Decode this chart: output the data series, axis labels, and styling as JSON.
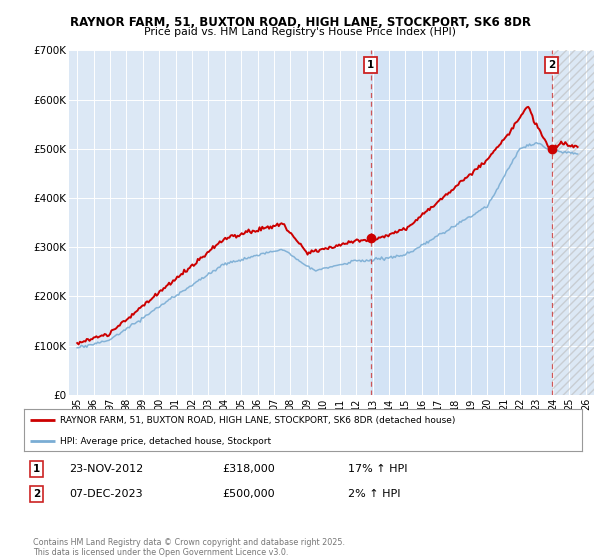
{
  "title1": "RAYNOR FARM, 51, BUXTON ROAD, HIGH LANE, STOCKPORT, SK6 8DR",
  "title2": "Price paid vs. HM Land Registry's House Price Index (HPI)",
  "plot_bg": "#dce8f5",
  "ylim": [
    0,
    700000
  ],
  "yticks": [
    0,
    100000,
    200000,
    300000,
    400000,
    500000,
    600000,
    700000
  ],
  "ytick_labels": [
    "£0",
    "£100K",
    "£200K",
    "£300K",
    "£400K",
    "£500K",
    "£600K",
    "£700K"
  ],
  "xlim_start": 1994.5,
  "xlim_end": 2026.5,
  "transaction1_date": "23-NOV-2012",
  "transaction1_price": 318000,
  "transaction1_hpi": "17% ↑ HPI",
  "transaction1_x": 2012.9,
  "transaction1_y": 318000,
  "transaction2_date": "07-DEC-2023",
  "transaction2_price": 500000,
  "transaction2_hpi": "2% ↑ HPI",
  "transaction2_x": 2023.93,
  "transaction2_y": 500000,
  "legend_label1": "RAYNOR FARM, 51, BUXTON ROAD, HIGH LANE, STOCKPORT, SK6 8DR (detached house)",
  "legend_label2": "HPI: Average price, detached house, Stockport",
  "footer": "Contains HM Land Registry data © Crown copyright and database right 2025.\nThis data is licensed under the Open Government Licence v3.0.",
  "red_color": "#cc0000",
  "blue_color": "#7aadd4",
  "shade_color": "#ddeeff",
  "marker_border": "#cc2222"
}
